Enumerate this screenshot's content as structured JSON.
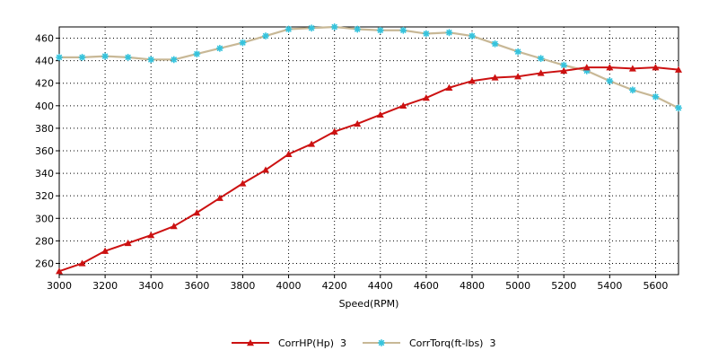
{
  "chart_data": {
    "type": "line",
    "title": "",
    "xlabel": "Speed(RPM)",
    "ylabel": "",
    "xlim": [
      3000,
      5700
    ],
    "ylim": [
      250,
      470
    ],
    "xticks": [
      3000,
      3200,
      3400,
      3600,
      3800,
      4000,
      4200,
      4400,
      4600,
      4800,
      5000,
      5200,
      5400,
      5600
    ],
    "yticks": [
      260,
      280,
      300,
      320,
      340,
      360,
      380,
      400,
      420,
      440,
      460
    ],
    "grid": true,
    "legend_position": "bottom",
    "x": [
      3000,
      3100,
      3200,
      3300,
      3400,
      3500,
      3600,
      3700,
      3800,
      3900,
      4000,
      4100,
      4200,
      4300,
      4400,
      4500,
      4600,
      4700,
      4800,
      4900,
      5000,
      5100,
      5200,
      5300,
      5400,
      5500,
      5600,
      5700
    ],
    "series": [
      {
        "name": "CorrHP(Hp)  3",
        "color": "#cc1111",
        "marker": "triangle",
        "values": [
          253,
          260,
          271,
          278,
          285,
          293,
          305,
          318,
          331,
          343,
          357,
          366,
          377,
          384,
          392,
          400,
          407,
          416,
          422,
          425,
          426,
          429,
          431,
          434,
          434,
          433,
          434,
          432
        ]
      },
      {
        "name": "CorrTorq(ft-lbs)  3",
        "color": "#c8b896",
        "marker_color": "#35c3dd",
        "marker": "star",
        "values": [
          443,
          443,
          444,
          443,
          441,
          441,
          446,
          451,
          456,
          462,
          468,
          469,
          470,
          468,
          467,
          467,
          464,
          465,
          462,
          455,
          448,
          442,
          436,
          431,
          422,
          414,
          408,
          398
        ]
      }
    ]
  },
  "colors": {
    "plot_border": "#000000",
    "grid": "#000000",
    "background": "#ffffff"
  }
}
